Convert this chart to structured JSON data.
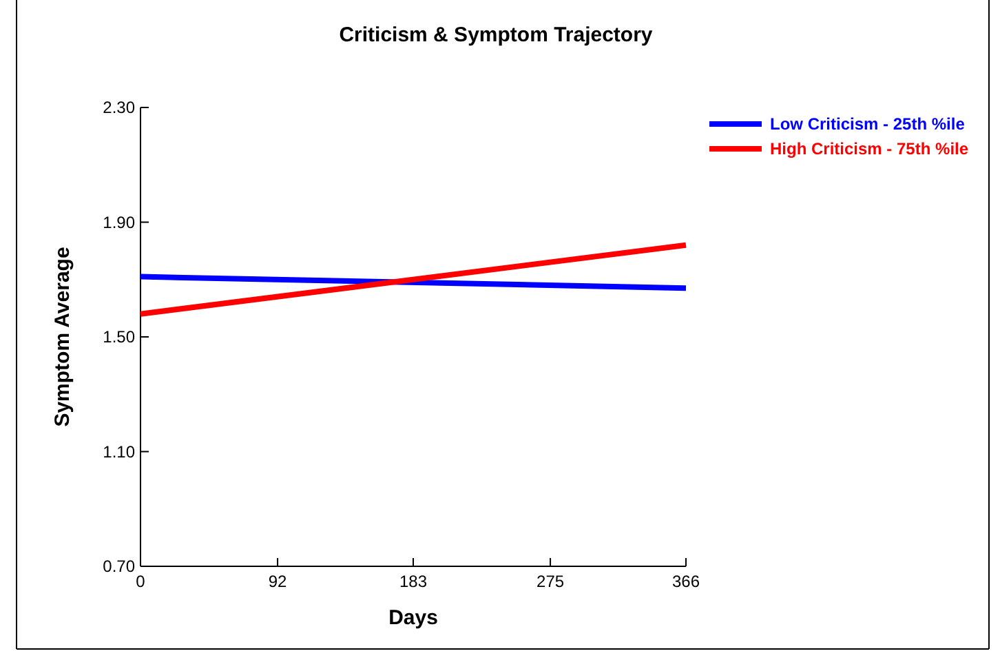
{
  "chart_data": {
    "type": "line",
    "title": "Criticism & Symptom Trajectory",
    "xlabel": "Days",
    "ylabel": "Symptom Average",
    "x": [
      0,
      366
    ],
    "series": [
      {
        "name": "Low Criticism - 25th %ile",
        "color": "#0000ff",
        "values": [
          1.71,
          1.67
        ]
      },
      {
        "name": "High Criticism - 75th %ile",
        "color": "#ff0000",
        "values": [
          1.58,
          1.82
        ]
      }
    ],
    "xlim": [
      0,
      366
    ],
    "xticks": [
      0,
      92,
      183,
      275,
      366
    ],
    "ylim": [
      0.7,
      2.3
    ],
    "yticks": [
      {
        "value": 0.7,
        "label": "0.70"
      },
      {
        "value": 1.1,
        "label": "1.10"
      },
      {
        "value": 1.5,
        "label": "1.50"
      },
      {
        "value": 1.9,
        "label": "1.90"
      },
      {
        "value": 2.3,
        "label": "2.30"
      }
    ],
    "grid": false,
    "legend": "top right",
    "marker": "none",
    "line_style": "solid"
  }
}
